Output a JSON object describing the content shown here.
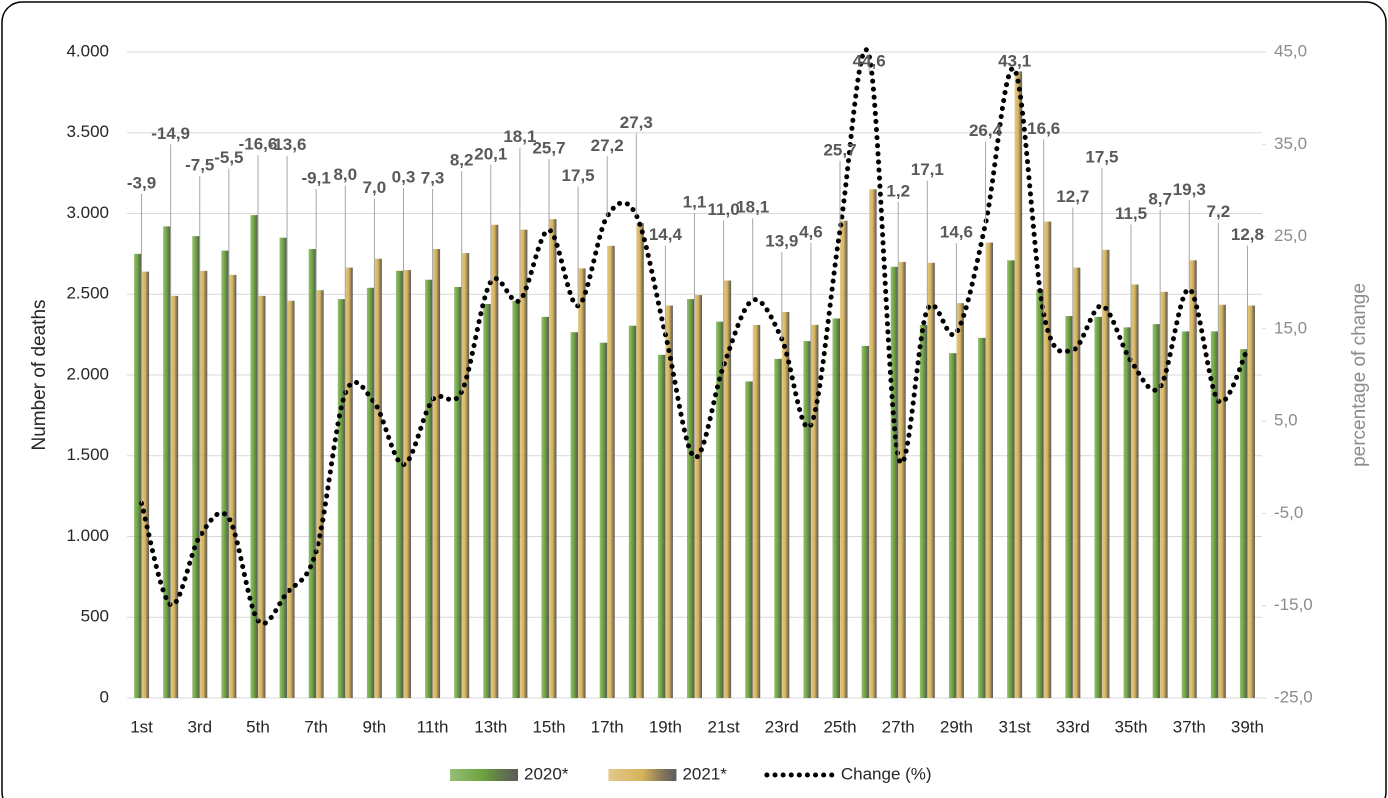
{
  "chart_data": {
    "type": "bar",
    "y_label": "Number of deaths",
    "y2_label": "percentage of change",
    "categories": [
      "1st",
      null,
      "3rd",
      null,
      "5th",
      null,
      "7th",
      null,
      "9th",
      null,
      "11th",
      null,
      "13th",
      null,
      "15th",
      null,
      "17th",
      null,
      "19th",
      null,
      "21st",
      null,
      "23rd",
      null,
      "25th",
      null,
      "27th",
      null,
      "29th",
      null,
      "31st",
      null,
      "33rd",
      null,
      "35th",
      null,
      "37th",
      null,
      "39th"
    ],
    "series": [
      {
        "name": "2020*",
        "color": "#6aa23c",
        "values": [
          2750,
          2920,
          2860,
          2770,
          2990,
          2850,
          2780,
          2470,
          2540,
          2645,
          2590,
          2545,
          2440,
          2460,
          2360,
          2265,
          2200,
          2305,
          2125,
          2470,
          2330,
          1960,
          2100,
          2210,
          2350,
          2180,
          2670,
          2310,
          2135,
          2230,
          2710,
          2530,
          2365,
          2360,
          2295,
          2315,
          2270,
          2270,
          2160
        ]
      },
      {
        "name": "2021*",
        "color": "#d6b35a",
        "values": [
          2640,
          2490,
          2645,
          2620,
          2490,
          2460,
          2525,
          2665,
          2720,
          2650,
          2780,
          2755,
          2930,
          2900,
          2965,
          2660,
          2800,
          2940,
          2430,
          2495,
          2585,
          2310,
          2390,
          2310,
          2955,
          3150,
          2700,
          2695,
          2445,
          2820,
          3880,
          2950,
          2665,
          2775,
          2560,
          2515,
          2710,
          2435,
          2430
        ]
      },
      {
        "name": "Change (%)",
        "color": "#000000",
        "type": "line",
        "axis": "y2",
        "values": [
          -3.9,
          -14.9,
          -7.5,
          -5.5,
          -16.6,
          -13.6,
          -9.1,
          8.0,
          7.0,
          0.3,
          7.3,
          8.2,
          20.1,
          18.1,
          25.7,
          17.5,
          27.2,
          27.3,
          14.4,
          1.1,
          11.0,
          18.1,
          13.9,
          4.6,
          25.7,
          44.6,
          1.2,
          17.1,
          14.6,
          26.4,
          43.1,
          16.6,
          12.7,
          17.5,
          11.5,
          8.7,
          19.3,
          7.2,
          12.8
        ],
        "value_labels": [
          "-3,9",
          "-14,9",
          "-7,5",
          "-5,5",
          "-16,6",
          "-13,6",
          "-9,1",
          "8,0",
          "7,0",
          "0,3",
          "7,3",
          "8,2",
          "20,1",
          "18,1",
          "25,7",
          "17,5",
          "27,2",
          "27,3",
          "14,4",
          "1,1",
          "11,0",
          "18,1",
          "13,9",
          "4,6",
          "25,7",
          "44,6",
          "1,2",
          "17,1",
          "14,6",
          "26,4",
          "43,1",
          "16,6",
          "12,7",
          "17,5",
          "11,5",
          "8,7",
          "19,3",
          "7,2",
          "12,8"
        ]
      }
    ],
    "ylim": [
      0,
      4000
    ],
    "yticks": [
      0,
      500,
      {
        "value": 1000,
        "label": "1.000"
      },
      {
        "value": 1500,
        "label": "1.500"
      },
      {
        "value": 2000,
        "label": "2.000"
      },
      {
        "value": 2500,
        "label": "2.500"
      },
      {
        "value": 3000,
        "label": "3.000"
      },
      {
        "value": 3500,
        "label": "3.500"
      },
      {
        "value": 4000,
        "label": "4.000"
      }
    ],
    "y2lim": [
      -25,
      45
    ],
    "y2ticks": [
      {
        "value": -25,
        "label": "-25,0"
      },
      {
        "value": -15,
        "label": "-15,0"
      },
      {
        "value": -5,
        "label": "-5,0"
      },
      {
        "value": 5,
        "label": "5,0"
      },
      {
        "value": 15,
        "label": "15,0"
      },
      {
        "value": 25,
        "label": "25,0"
      },
      {
        "value": 35,
        "label": "35,0"
      },
      {
        "value": 45,
        "label": "45,0"
      }
    ],
    "grid": true,
    "legend": "bottom"
  }
}
